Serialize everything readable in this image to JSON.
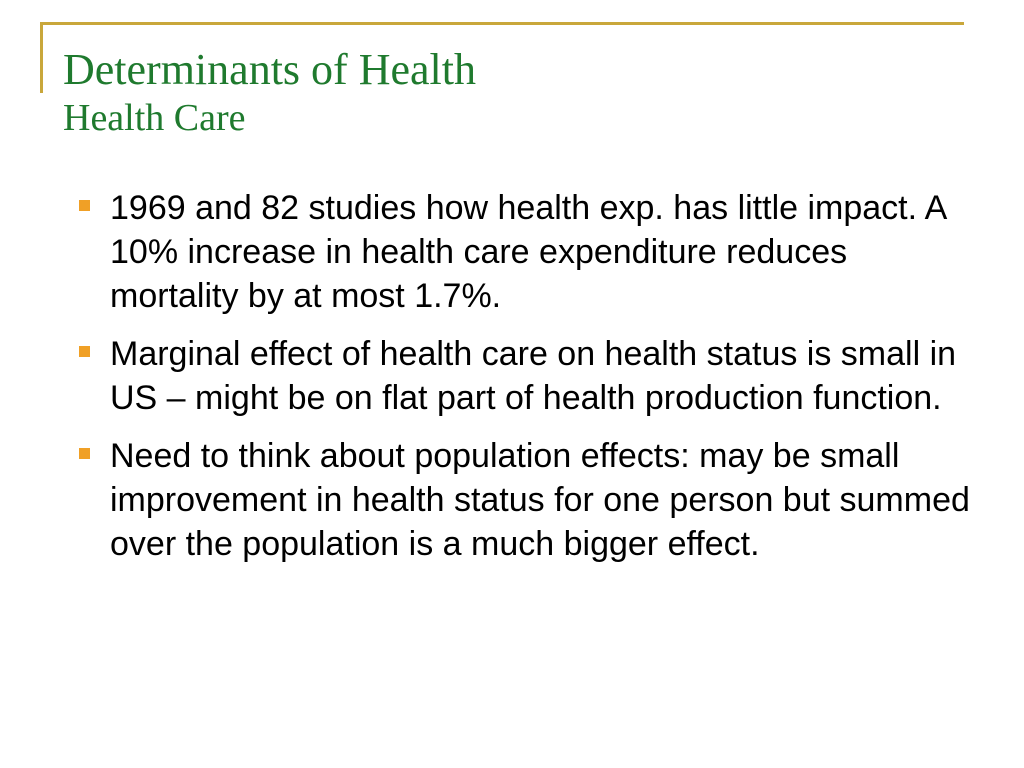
{
  "slide": {
    "title": "Determinants of  Health",
    "subtitle": "Health Care",
    "accent_color": "#c9a73b",
    "title_color": "#1f7a2e",
    "bullet_color": "#f0a026",
    "bullets": [
      "1969 and 82 studies how health exp. has little impact. A 10% increase in health care expenditure reduces mortality by at most 1.7%.",
      "Marginal effect of health care on health status is small in US – might be on flat part of health production function.",
      "Need to think about population effects: may be small improvement in health status for one person but summed over the population is a much bigger effect."
    ]
  }
}
